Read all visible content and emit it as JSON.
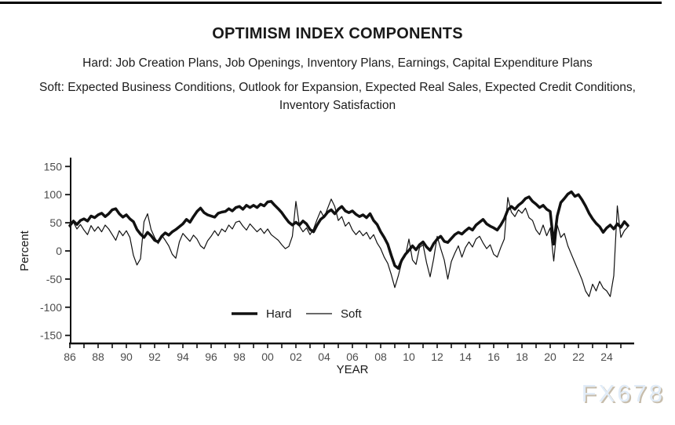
{
  "header": {
    "title": "OPTIMISM INDEX COMPONENTS",
    "hard_line": "Hard: Job Creation Plans, Job Openings, Inventory Plans, Earnings, Capital Expenditure Plans",
    "soft_line": "Soft: Expected Business Conditions, Outlook for Expansion, Expected Real Sales, Expected Credit Conditions, Inventory Satisfaction"
  },
  "watermark": "FX678",
  "chart_data": {
    "type": "line",
    "title": "",
    "xlabel": "YEAR",
    "ylabel": "Percent",
    "ylim": [
      -160,
      165
    ],
    "xlim": [
      1985.9,
      2025.9
    ],
    "grid": false,
    "legend_position": "inside-bottom-center",
    "y_ticks": [
      150,
      100,
      50,
      0,
      -50,
      -100,
      -150
    ],
    "x_tick_min": 1986,
    "x_tick_max": 2025,
    "x_major_ticks": [
      1986,
      1988,
      1990,
      1992,
      1994,
      1996,
      1998,
      2000,
      2002,
      2004,
      2006,
      2008,
      2010,
      2012,
      2014,
      2016,
      2018,
      2020,
      2022,
      2024
    ],
    "x_major_tick_labels": [
      "86",
      "88",
      "90",
      "92",
      "94",
      "96",
      "98",
      "00",
      "02",
      "04",
      "06",
      "08",
      "10",
      "12",
      "14",
      "16",
      "18",
      "20",
      "22",
      "24"
    ],
    "colors": {
      "line": "#111111",
      "axis": "#111111",
      "tick_label": "#4d4d4d",
      "text": "#1a1a1a"
    },
    "x_start": 1986.0,
    "x_step": 0.25,
    "legend": [
      {
        "name": "Hard",
        "thick": true
      },
      {
        "name": "Soft",
        "thick": false
      }
    ],
    "series": [
      {
        "name": "Hard",
        "stroke_width": 3.5,
        "values": [
          45,
          53,
          47,
          54,
          57,
          53,
          62,
          59,
          64,
          67,
          61,
          66,
          73,
          75,
          66,
          60,
          64,
          57,
          52,
          38,
          30,
          24,
          33,
          27,
          19,
          16,
          26,
          32,
          28,
          34,
          38,
          43,
          48,
          56,
          51,
          61,
          70,
          76,
          68,
          64,
          62,
          60,
          67,
          69,
          70,
          75,
          71,
          77,
          79,
          74,
          81,
          77,
          81,
          77,
          83,
          80,
          87,
          88,
          81,
          75,
          68,
          59,
          51,
          46,
          51,
          46,
          53,
          48,
          38,
          34,
          46,
          56,
          61,
          69,
          73,
          66,
          74,
          79,
          71,
          68,
          71,
          65,
          61,
          64,
          59,
          66,
          54,
          47,
          34,
          24,
          12,
          -8,
          -26,
          -31,
          -16,
          -6,
          1,
          9,
          2,
          11,
          16,
          7,
          1,
          13,
          21,
          26,
          17,
          15,
          22,
          29,
          33,
          30,
          36,
          41,
          37,
          46,
          51,
          56,
          48,
          44,
          41,
          37,
          46,
          57,
          73,
          79,
          74,
          81,
          86,
          93,
          96,
          88,
          83,
          77,
          81,
          74,
          70,
          12,
          62,
          86,
          93,
          101,
          105,
          97,
          100,
          91,
          80,
          67,
          57,
          49,
          43,
          33,
          41,
          46,
          39,
          48,
          42,
          52,
          45
        ]
      },
      {
        "name": "Soft",
        "stroke_width": 1.2,
        "values": [
          42,
          51,
          39,
          47,
          37,
          29,
          45,
          35,
          43,
          34,
          46,
          39,
          29,
          19,
          36,
          27,
          36,
          24,
          -8,
          -25,
          -14,
          52,
          66,
          38,
          24,
          13,
          28,
          19,
          9,
          -6,
          -13,
          16,
          31,
          24,
          17,
          28,
          21,
          9,
          4,
          18,
          26,
          36,
          27,
          39,
          34,
          46,
          39,
          51,
          53,
          44,
          37,
          48,
          41,
          34,
          40,
          31,
          39,
          29,
          24,
          19,
          11,
          4,
          8,
          26,
          88,
          44,
          34,
          41,
          29,
          39,
          56,
          71,
          59,
          76,
          92,
          79,
          54,
          61,
          44,
          51,
          37,
          29,
          36,
          27,
          33,
          21,
          29,
          14,
          4,
          -11,
          -22,
          -42,
          -65,
          -44,
          -19,
          -9,
          21,
          -16,
          -24,
          6,
          11,
          -21,
          -46,
          -14,
          26,
          4,
          -16,
          -50,
          -19,
          -4,
          9,
          -11,
          6,
          16,
          7,
          21,
          26,
          14,
          4,
          11,
          -6,
          -11,
          6,
          21,
          95,
          69,
          61,
          73,
          67,
          76,
          59,
          54,
          37,
          29,
          46,
          27,
          41,
          -18,
          46,
          24,
          31,
          9,
          -6,
          -21,
          -36,
          -51,
          -71,
          -81,
          -59,
          -71,
          -54,
          -66,
          -71,
          -81,
          -44,
          80,
          24,
          36,
          43
        ]
      }
    ]
  }
}
